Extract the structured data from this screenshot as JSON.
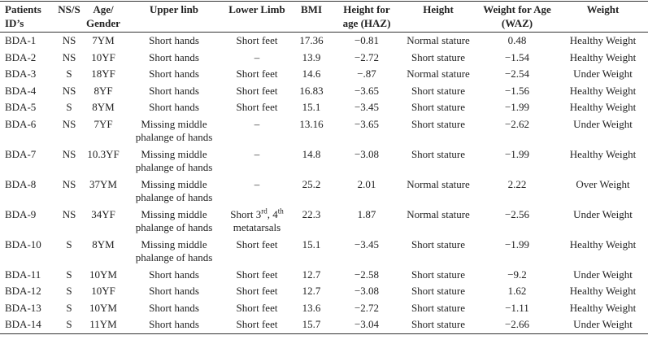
{
  "table": {
    "header": [
      "Patients ID’s",
      "NS/S",
      "Age/ Gender",
      "Upper linb",
      "Lower Limb",
      "BMI",
      "Height for age (HAZ)",
      "Height",
      "Weight for Age (WAZ)",
      "Weight"
    ],
    "rows": [
      [
        "BDA-1",
        "NS",
        "7YM",
        "Short hands",
        "Short feet",
        "17.36",
        "−0.81",
        "Normal stature",
        "0.48",
        "Healthy Weight"
      ],
      [
        "BDA-2",
        "NS",
        "10YF",
        "Short hands",
        "–",
        "13.9",
        "−2.72",
        "Short stature",
        "−1.54",
        "Healthy Weight"
      ],
      [
        "BDA-3",
        "S",
        "18YF",
        "Short hands",
        "Short feet",
        "14.6",
        "−.87",
        "Normal stature",
        "−2.54",
        "Under Weight"
      ],
      [
        "BDA-4",
        "NS",
        "8YF",
        "Short hands",
        "Short feet",
        "16.83",
        "−3.65",
        "Short stature",
        "−1.56",
        "Healthy Weight"
      ],
      [
        "BDA-5",
        "S",
        "8YM",
        "Short hands",
        "Short feet",
        "15.1",
        "−3.45",
        "Short stature",
        "−1.99",
        "Healthy Weight"
      ],
      [
        "BDA-6",
        "NS",
        "7YF",
        "Missing middle phalange of hands",
        "–",
        "13.16",
        "−3.65",
        "Short stature",
        "−2.62",
        "Under Weight"
      ],
      [
        "BDA-7",
        "NS",
        "10.3YF",
        "Missing middle phalange of hands",
        "–",
        "14.8",
        "−3.08",
        "Short stature",
        "−1.99",
        "Healthy Weight"
      ],
      [
        "BDA-8",
        "NS",
        "37YM",
        "Missing middle phalange of hands",
        "–",
        "25.2",
        "2.01",
        "Normal stature",
        "2.22",
        "Over Weight"
      ],
      [
        "BDA-9",
        "NS",
        "34YF",
        "Missing middle phalange of hands",
        [
          {
            "text": "Short 3"
          },
          {
            "text": "rd",
            "sup": true
          },
          {
            "text": ", 4"
          },
          {
            "text": "th",
            "sup": true
          },
          {
            "text": " metatarsals"
          }
        ],
        "22.3",
        "1.87",
        "Normal stature",
        "−2.56",
        "Under Weight"
      ],
      [
        "BDA-10",
        "S",
        "8YM",
        "Missing middle phalange of hands",
        "Short feet",
        "15.1",
        "−3.45",
        "Short stature",
        "−1.99",
        "Healthy Weight"
      ],
      [
        "BDA-11",
        "S",
        "10YM",
        "Short hands",
        "Short feet",
        "12.7",
        "−2.58",
        "Short stature",
        "−9.2",
        "Under Weight"
      ],
      [
        "BDA-12",
        "S",
        "10YF",
        "Short hands",
        "Short feet",
        "12.7",
        "−3.08",
        "Short stature",
        "1.62",
        "Healthy Weight"
      ],
      [
        "BDA-13",
        "S",
        "10YM",
        "Short hands",
        "Short feet",
        "13.6",
        "−2.72",
        "Short stature",
        "−1.11",
        "Healthy Weight"
      ],
      [
        "BDA-14",
        "S",
        "11YM",
        "Short hands",
        "Short feet",
        "15.7",
        "−3.04",
        "Short stature",
        "−2.66",
        "Under Weight"
      ]
    ]
  }
}
